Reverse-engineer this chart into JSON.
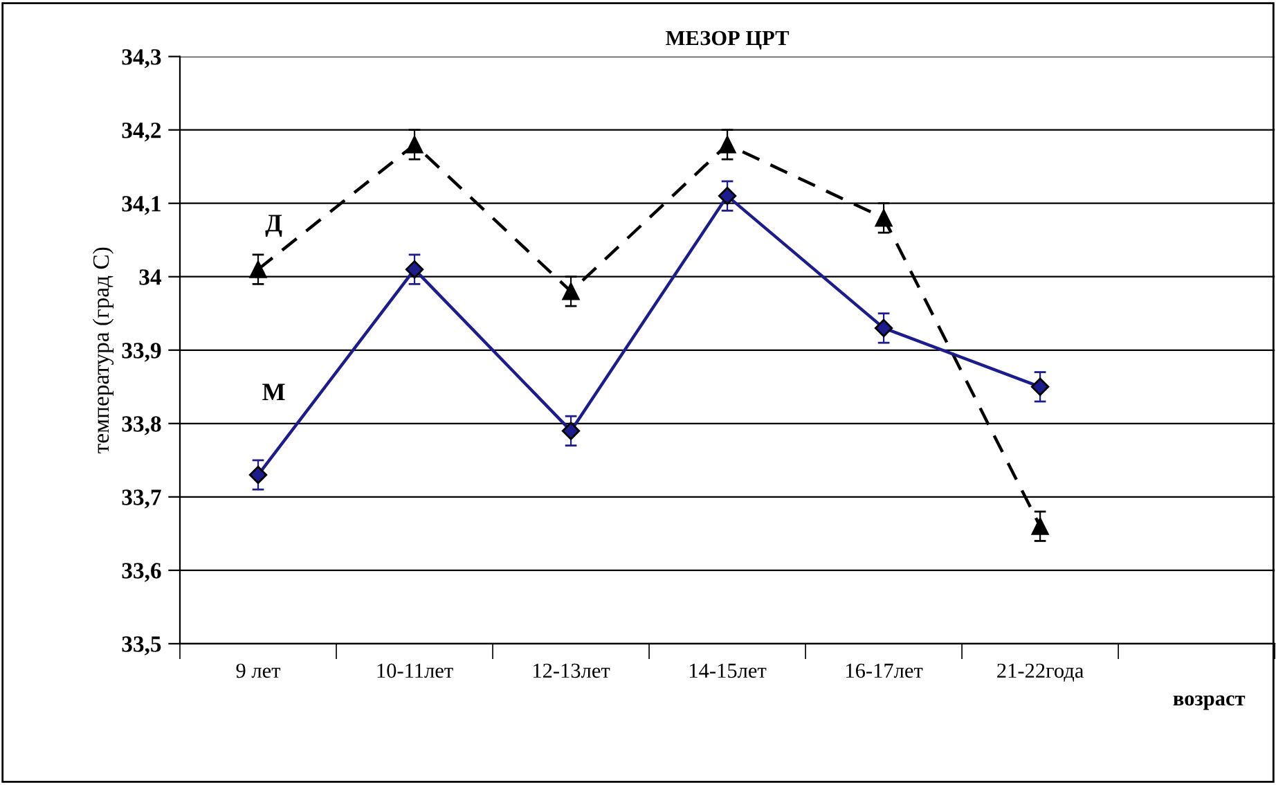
{
  "chart_data": {
    "type": "line",
    "title": "МЕЗОР ЦРТ",
    "xlabel": "возраст",
    "ylabel": "температура (град С)",
    "categories": [
      "9 лет",
      "10-11лет",
      "12-13лет",
      "14-15лет",
      "16-17лет",
      "21-22года",
      null
    ],
    "series": [
      {
        "name": "Д",
        "color": "#000000",
        "marker": "triangle",
        "line_style": "dashed",
        "values": [
          34.01,
          34.18,
          33.98,
          34.18,
          34.08,
          33.66,
          null
        ],
        "errors": [
          0.02,
          0.02,
          0.02,
          0.02,
          0.02,
          0.02,
          null
        ]
      },
      {
        "name": "М",
        "color": "#1c1c8c",
        "marker": "diamond",
        "line_style": "solid",
        "values": [
          33.73,
          34.01,
          33.79,
          34.11,
          33.93,
          33.85,
          null
        ],
        "errors": [
          0.02,
          0.02,
          0.02,
          0.02,
          0.02,
          0.02,
          null
        ]
      }
    ],
    "ylim": [
      33.5,
      34.3
    ],
    "yticks": [
      {
        "value": 33.5,
        "label": "33,5"
      },
      {
        "value": 33.6,
        "label": "33,6"
      },
      {
        "value": 33.7,
        "label": "33,7"
      },
      {
        "value": 33.8,
        "label": "33,8"
      },
      {
        "value": 33.9,
        "label": "33,9"
      },
      34,
      {
        "value": 34.1,
        "label": "34,1"
      },
      {
        "value": 34.2,
        "label": "34,2"
      },
      {
        "value": 34.3,
        "label": "34,3"
      }
    ],
    "grid": "y",
    "legend": false
  }
}
